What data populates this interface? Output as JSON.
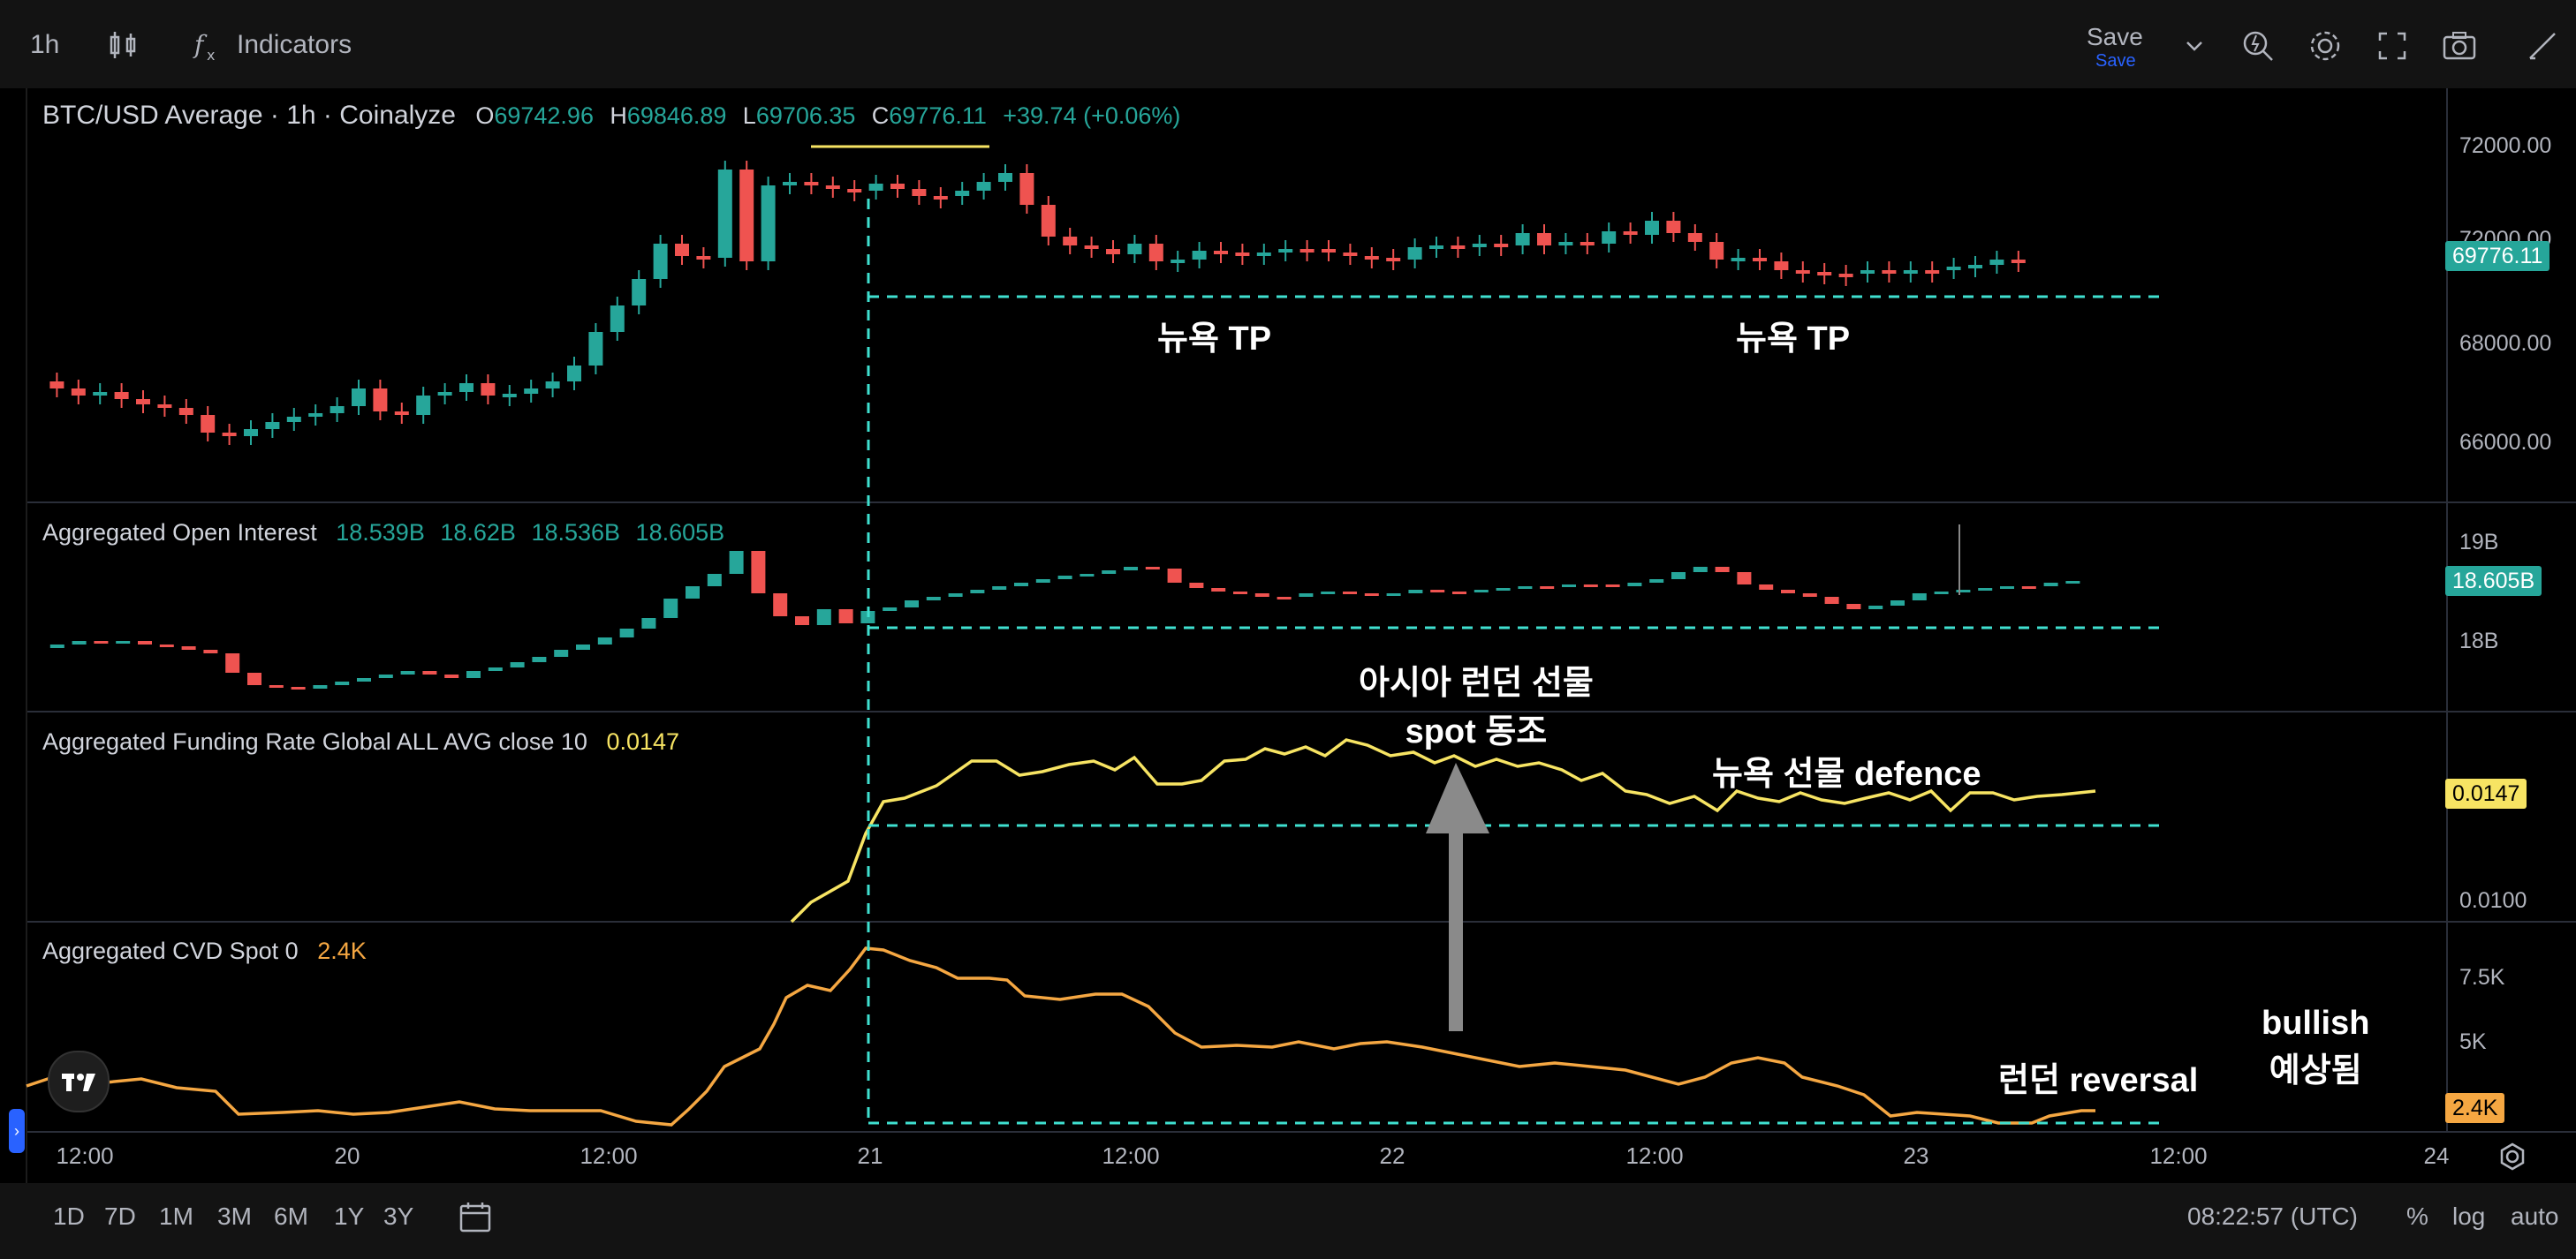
{
  "toolbar": {
    "interval": "1h",
    "indicators_label": "Indicators",
    "save_label": "Save",
    "save_sub": "Save"
  },
  "main": {
    "title": "BTC/USD Average · 1h · Coinalyze",
    "o_label": "O",
    "o": "69742.96",
    "h_label": "H",
    "h": "69846.89",
    "l_label": "L",
    "l": "69706.35",
    "c_label": "C",
    "c": "69776.11",
    "change": "+39.74 (+0.06%)",
    "price_labels": [
      "72000.00",
      "68000.00",
      "66000.00"
    ],
    "last_price": "69776.11"
  },
  "oi": {
    "title": "Aggregated Open Interest",
    "values": [
      "18.539B",
      "18.62B",
      "18.536B",
      "18.605B"
    ],
    "labels": [
      "19B",
      "18B"
    ],
    "last": "18.605B"
  },
  "funding": {
    "title": "Aggregated Funding Rate Global ALL AVG close 10",
    "value": "0.0147",
    "labels": [
      "0.0100"
    ],
    "last": "0.0147"
  },
  "cvd": {
    "title": "Aggregated CVD Spot 0",
    "value": "2.4K",
    "labels": [
      "7.5K",
      "5K"
    ],
    "last": "2.4K"
  },
  "xaxis": {
    "labels": [
      "12:00",
      "20",
      "12:00",
      "21",
      "12:00",
      "22",
      "12:00",
      "23",
      "12:00",
      "24"
    ]
  },
  "annotations": {
    "ny_tp_1": "뉴욕 TP",
    "ny_tp_2": "뉴욕 TP",
    "asia_line1": "아시아 런던 선물",
    "asia_line2": "spot 동조",
    "ny_futures": "뉴욕 선물 defence",
    "london_reversal": "런던 reversal",
    "bullish_line1": "bullish",
    "bullish_line2": "예상됨"
  },
  "bottombar": {
    "ranges": [
      "1D",
      "7D",
      "1M",
      "3M",
      "6M",
      "1Y",
      "3Y"
    ],
    "time": "08:22:57 (UTC)",
    "percent": "%",
    "log": "log",
    "auto": "auto"
  },
  "colors": {
    "up": "#26a69a",
    "down": "#ef5350",
    "funding_line": "#f7e463",
    "cvd_line": "#f5a742",
    "guide": "#3fe0d0"
  }
}
